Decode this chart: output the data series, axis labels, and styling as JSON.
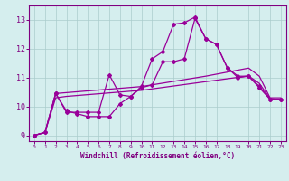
{
  "x_values": [
    0,
    1,
    2,
    3,
    4,
    5,
    6,
    7,
    8,
    9,
    10,
    11,
    12,
    13,
    14,
    15,
    16,
    17,
    18,
    19,
    20,
    21,
    22,
    23
  ],
  "line1_y": [
    9.0,
    9.1,
    10.45,
    9.8,
    9.8,
    9.8,
    9.8,
    11.1,
    10.4,
    10.35,
    10.7,
    11.65,
    11.9,
    12.85,
    12.9,
    13.1,
    12.35,
    12.15,
    11.35,
    11.05,
    11.05,
    10.7,
    10.25,
    10.25
  ],
  "line2_y": [
    9.0,
    9.1,
    10.45,
    9.85,
    9.75,
    9.65,
    9.65,
    9.65,
    10.1,
    10.35,
    10.65,
    10.75,
    11.55,
    11.55,
    11.65,
    13.05,
    12.35,
    12.15,
    11.35,
    11.0,
    11.05,
    10.65,
    10.25,
    10.25
  ],
  "trend1_y": [
    9.0,
    9.1,
    10.45,
    10.48,
    10.51,
    10.54,
    10.57,
    10.6,
    10.63,
    10.66,
    10.69,
    10.75,
    10.81,
    10.87,
    10.93,
    10.99,
    11.05,
    11.12,
    11.19,
    11.26,
    11.33,
    11.05,
    10.3,
    10.3
  ],
  "trend2_y": [
    9.0,
    9.1,
    10.3,
    10.35,
    10.38,
    10.41,
    10.44,
    10.47,
    10.5,
    10.53,
    10.56,
    10.61,
    10.66,
    10.71,
    10.76,
    10.81,
    10.86,
    10.91,
    10.96,
    11.01,
    11.06,
    10.8,
    10.28,
    10.22
  ],
  "ylim": [
    8.8,
    13.5
  ],
  "xlim": [
    -0.5,
    23.5
  ],
  "yticks": [
    9,
    10,
    11,
    12,
    13
  ],
  "xticks": [
    0,
    1,
    2,
    3,
    4,
    5,
    6,
    7,
    8,
    9,
    10,
    11,
    12,
    13,
    14,
    15,
    16,
    17,
    18,
    19,
    20,
    21,
    22,
    23
  ],
  "xlabel": "Windchill (Refroidissement éolien,°C)",
  "line_color": "#990099",
  "bg_color": "#d5eeee",
  "grid_color": "#aacccc",
  "axis_color": "#800080",
  "tick_color": "#800080",
  "font_color": "#800080"
}
